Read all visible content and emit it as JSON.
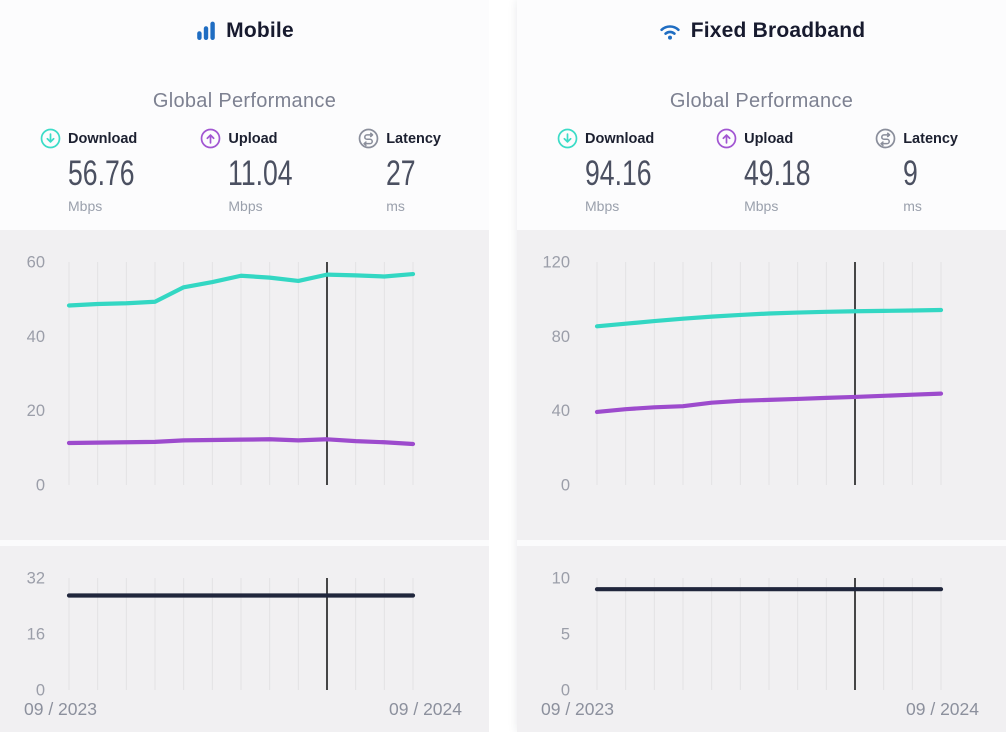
{
  "theme": {
    "brand_blue": "#1f6dc2",
    "teal": "#33d7c3",
    "purple": "#9d4bcd",
    "navy": "#20263c",
    "cursor": "#1c1c1c",
    "gridline": "#e3e2e4",
    "tick_label": "#9b9ea9"
  },
  "panels": [
    {
      "title": "Mobile",
      "heading": "Global Performance",
      "stats": [
        {
          "label": "Download",
          "value": "56.76",
          "unit": "Mbps"
        },
        {
          "label": "Upload",
          "value": "11.04",
          "unit": "Mbps"
        },
        {
          "label": "Latency",
          "value": "27",
          "unit": "ms"
        }
      ]
    },
    {
      "title": "Fixed Broadband",
      "heading": "Global Performance",
      "stats": [
        {
          "label": "Download",
          "value": "94.16",
          "unit": "Mbps"
        },
        {
          "label": "Upload",
          "value": "49.18",
          "unit": "Mbps"
        },
        {
          "label": "Latency",
          "value": "9",
          "unit": "ms"
        }
      ]
    }
  ],
  "chart_data": [
    {
      "type": "line",
      "title": "Mobile speeds over time",
      "ylabel": "Mbps",
      "x": [
        "2023-09",
        "2023-10",
        "2023-11",
        "2023-12",
        "2024-01",
        "2024-02",
        "2024-03",
        "2024-04",
        "2024-05",
        "2024-06",
        "2024-07",
        "2024-08",
        "2024-09"
      ],
      "series": [
        {
          "name": "Download",
          "color": "#33d7c3",
          "values": [
            48.3,
            48.7,
            48.9,
            49.3,
            53.2,
            54.6,
            56.3,
            55.8,
            54.9,
            56.6,
            56.4,
            56.1,
            56.76
          ]
        },
        {
          "name": "Upload",
          "color": "#9d4bcd",
          "values": [
            11.3,
            11.4,
            11.5,
            11.6,
            12.0,
            12.1,
            12.2,
            12.3,
            12.0,
            12.3,
            11.8,
            11.5,
            11.04
          ]
        }
      ],
      "ylim": [
        0,
        60
      ],
      "yticks": [
        60,
        40,
        20,
        0
      ],
      "cursor_index": 9,
      "grid": "vertical-only",
      "legend": "none"
    },
    {
      "type": "line",
      "title": "Mobile latency over time",
      "ylabel": "ms",
      "x": [
        "2023-09",
        "2023-10",
        "2023-11",
        "2023-12",
        "2024-01",
        "2024-02",
        "2024-03",
        "2024-04",
        "2024-05",
        "2024-06",
        "2024-07",
        "2024-08",
        "2024-09"
      ],
      "series": [
        {
          "name": "Latency",
          "color": "#20263c",
          "values": [
            27,
            27,
            27,
            27,
            27,
            27,
            27,
            27,
            27,
            27,
            27,
            27,
            27
          ]
        }
      ],
      "ylim": [
        0,
        32
      ],
      "yticks": [
        32,
        16,
        0
      ],
      "cursor_index": 9,
      "grid": "vertical-only",
      "legend": "none",
      "xlabel_start": "09 / 2023",
      "xlabel_end": "09 / 2024"
    },
    {
      "type": "line",
      "title": "Fixed broadband speeds over time",
      "ylabel": "Mbps",
      "x": [
        "2023-09",
        "2023-10",
        "2023-11",
        "2023-12",
        "2024-01",
        "2024-02",
        "2024-03",
        "2024-04",
        "2024-05",
        "2024-06",
        "2024-07",
        "2024-08",
        "2024-09"
      ],
      "series": [
        {
          "name": "Download",
          "color": "#33d7c3",
          "values": [
            85.4,
            86.8,
            88.2,
            89.5,
            90.6,
            91.5,
            92.3,
            92.8,
            93.2,
            93.5,
            93.7,
            93.9,
            94.16
          ]
        },
        {
          "name": "Upload",
          "color": "#9d4bcd",
          "values": [
            39.3,
            40.8,
            41.8,
            42.4,
            44.3,
            45.3,
            45.8,
            46.3,
            46.9,
            47.4,
            48.0,
            48.6,
            49.18
          ]
        }
      ],
      "ylim": [
        0,
        120
      ],
      "yticks": [
        120,
        80,
        40,
        0
      ],
      "cursor_index": 9,
      "grid": "vertical-only",
      "legend": "none"
    },
    {
      "type": "line",
      "title": "Fixed broadband latency over time",
      "ylabel": "ms",
      "x": [
        "2023-09",
        "2023-10",
        "2023-11",
        "2023-12",
        "2024-01",
        "2024-02",
        "2024-03",
        "2024-04",
        "2024-05",
        "2024-06",
        "2024-07",
        "2024-08",
        "2024-09"
      ],
      "series": [
        {
          "name": "Latency",
          "color": "#20263c",
          "values": [
            9,
            9,
            9,
            9,
            9,
            9,
            9,
            9,
            9,
            9,
            9,
            9,
            9
          ]
        }
      ],
      "ylim": [
        0,
        10
      ],
      "yticks": [
        10,
        5,
        0
      ],
      "cursor_index": 9,
      "grid": "vertical-only",
      "legend": "none",
      "xlabel_start": "09 / 2023",
      "xlabel_end": "09 / 2024"
    }
  ]
}
